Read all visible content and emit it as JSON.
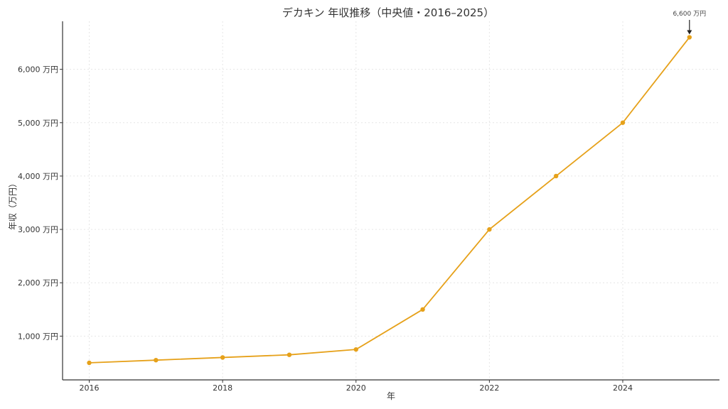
{
  "chart_data": {
    "type": "line",
    "title": "デカキン 年収推移（中央値・2016–2025）",
    "xlabel": "年",
    "ylabel": "年収（万円）",
    "x": [
      2016,
      2017,
      2018,
      2019,
      2020,
      2021,
      2022,
      2023,
      2024,
      2025
    ],
    "series": [
      {
        "values": [
          500,
          550,
          600,
          650,
          750,
          1500,
          3000,
          4000,
          5000,
          6600
        ],
        "color": "#E6A11A"
      }
    ],
    "xticks": [
      2016,
      2018,
      2020,
      2022,
      2024
    ],
    "xtick_labels": [
      "2016",
      "2018",
      "2020",
      "2022",
      "2024"
    ],
    "yticks": [
      1000,
      2000,
      3000,
      4000,
      5000,
      6000
    ],
    "ytick_labels": [
      "1,000 万円",
      "2,000 万円",
      "3,000 万円",
      "4,000 万円",
      "5,000 万円",
      "6,000 万円"
    ],
    "xlim": [
      2015.6,
      2025.45
    ],
    "ylim": [
      180,
      6900
    ],
    "grid": true,
    "annotation": {
      "text": "6,600 万円",
      "x": 2025,
      "y": 6600,
      "arrow": true
    }
  }
}
